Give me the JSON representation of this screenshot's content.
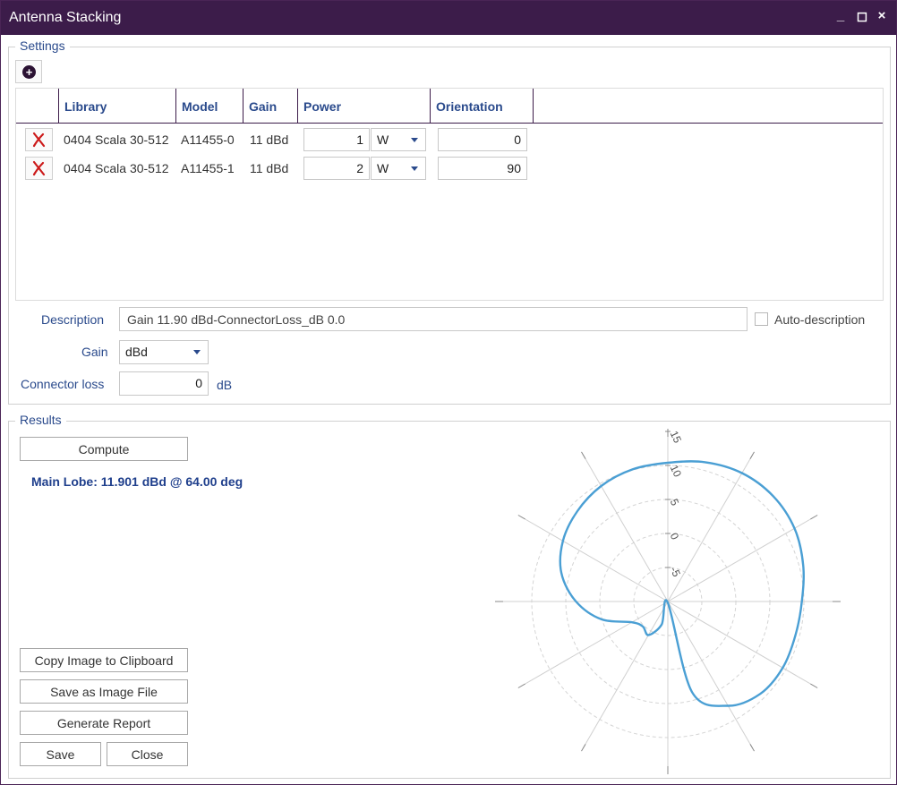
{
  "window": {
    "title": "Antenna Stacking",
    "controls": {
      "minimize": "_",
      "maximize": "◻",
      "close": "×"
    }
  },
  "settings": {
    "legend": "Settings",
    "add_icon": "plus-circle-icon",
    "columns": [
      "Library",
      "Model",
      "Gain",
      "Power",
      "Orientation"
    ],
    "rows": [
      {
        "library": "0404 Scala 30-512",
        "model": "A11455-0",
        "gain": "11 dBd",
        "power": "1",
        "unit": "W",
        "orientation": "0"
      },
      {
        "library": "0404 Scala 30-512",
        "model": "A11455-1",
        "gain": "11 dBd",
        "power": "2",
        "unit": "W",
        "orientation": "90"
      }
    ],
    "description_label": "Description",
    "description_value": "Gain 11.90 dBd-ConnectorLoss_dB 0.0",
    "auto_description_label": "Auto-description",
    "auto_description_checked": false,
    "gain_label": "Gain",
    "gain_value": "dBd",
    "connector_loss_label": "Connector loss",
    "connector_loss_value": "0",
    "connector_loss_unit": "dB"
  },
  "results": {
    "legend": "Results",
    "compute_label": "Compute",
    "main_lobe_text": "Main Lobe: 11.901 dBd @ 64.00 deg",
    "copy_image_label": "Copy Image to Clipboard",
    "save_image_label": "Save as Image File",
    "generate_report_label": "Generate Report",
    "save_label": "Save",
    "close_label": "Close"
  },
  "colors": {
    "titlebar": "#3c1c4a",
    "accent_text": "#2a4a8c",
    "pattern_line": "#4a9fd4",
    "delete_icon": "#cc1a1a"
  },
  "chart_data": {
    "type": "polar",
    "r_ticks": [
      "15",
      "10",
      "5",
      "0",
      "-5"
    ],
    "r_range": [
      -10,
      15
    ],
    "units": "dBd",
    "main_lobe": {
      "gain": 11.901,
      "direction_deg": 64.0
    },
    "series": [
      {
        "azimuth_deg": [
          0,
          15,
          30,
          45,
          60,
          75,
          90,
          105,
          120,
          135,
          150,
          165,
          180,
          195,
          210,
          225,
          240,
          255,
          270,
          285,
          300,
          315,
          330,
          345
        ],
        "gain": [
          10.4,
          11.2,
          11.8,
          11.9,
          11.5,
          10.6,
          9.7,
          9.4,
          9.5,
          9.2,
          7.7,
          3.8,
          -9.8,
          -6.5,
          -4.3,
          -4.8,
          -3.9,
          0.1,
          3.5,
          6.2,
          7.8,
          8.8,
          9.6,
          10.1
        ]
      }
    ],
    "grid": true
  }
}
